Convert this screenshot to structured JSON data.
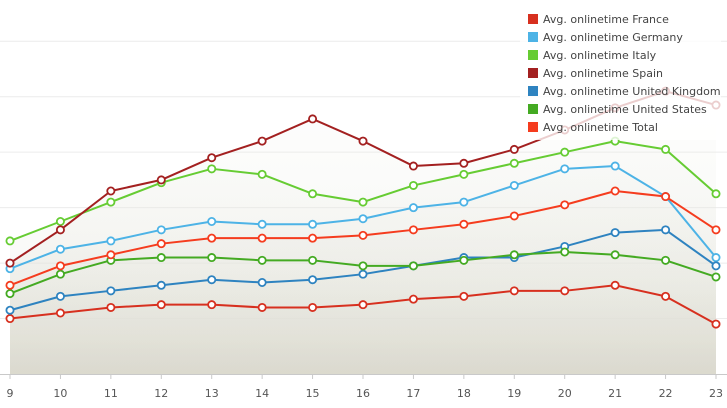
{
  "chart_data": {
    "type": "line",
    "title": "",
    "xlabel": "",
    "ylabel": "",
    "x": [
      9,
      10,
      11,
      12,
      13,
      14,
      15,
      16,
      17,
      18,
      19,
      20,
      21,
      22,
      23
    ],
    "ylim": [
      0,
      6.6
    ],
    "grid": "horizontal",
    "legend_position": "top-right",
    "series": [
      {
        "name": "Avg. onlinetime France",
        "color": "#d7301f",
        "values": [
          1.0,
          1.1,
          1.2,
          1.25,
          1.25,
          1.2,
          1.2,
          1.25,
          1.35,
          1.4,
          1.5,
          1.5,
          1.6,
          1.4,
          0.9
        ]
      },
      {
        "name": "Avg. onlinetime Germany",
        "color": "#4db3e6",
        "values": [
          1.9,
          2.25,
          2.4,
          2.6,
          2.75,
          2.7,
          2.7,
          2.8,
          3.0,
          3.1,
          3.4,
          3.7,
          3.75,
          3.2,
          2.1
        ]
      },
      {
        "name": "Avg. onlinetime Italy",
        "color": "#66cc33",
        "values": [
          2.4,
          2.75,
          3.1,
          3.45,
          3.7,
          3.6,
          3.25,
          3.1,
          3.4,
          3.6,
          3.8,
          4.0,
          4.2,
          4.05,
          3.25
        ]
      },
      {
        "name": "Avg. onlinetime Spain",
        "color": "#a32020",
        "values": [
          2.0,
          2.6,
          3.3,
          3.5,
          3.9,
          4.2,
          4.6,
          4.2,
          3.75,
          3.8,
          4.05,
          4.4,
          4.8,
          5.1,
          4.85
        ]
      },
      {
        "name": "Avg. onlinetime United Kingdom",
        "color": "#2e83c0",
        "values": [
          1.15,
          1.4,
          1.5,
          1.6,
          1.7,
          1.65,
          1.7,
          1.8,
          1.95,
          2.1,
          2.1,
          2.3,
          2.55,
          2.6,
          1.95
        ]
      },
      {
        "name": "Avg. onlinetime United States",
        "color": "#44aa22",
        "values": [
          1.45,
          1.8,
          2.05,
          2.1,
          2.1,
          2.05,
          2.05,
          1.95,
          1.95,
          2.05,
          2.15,
          2.2,
          2.15,
          2.05,
          1.75
        ]
      },
      {
        "name": "Avg. onlinetime Total",
        "color": "#f53c1e",
        "values": [
          1.6,
          1.95,
          2.15,
          2.35,
          2.45,
          2.45,
          2.45,
          2.5,
          2.6,
          2.7,
          2.85,
          3.05,
          3.3,
          3.2,
          2.6
        ]
      }
    ]
  }
}
